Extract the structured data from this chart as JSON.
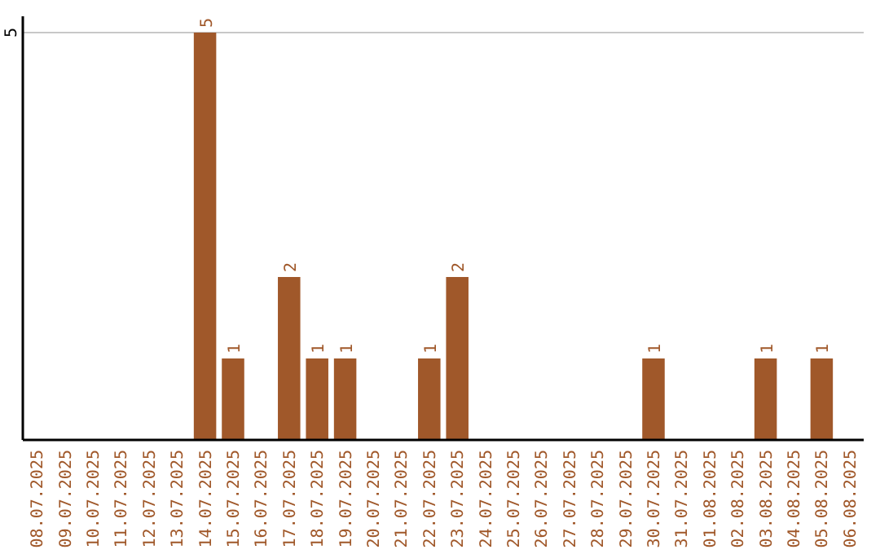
{
  "chart_data": {
    "type": "bar",
    "categories": [
      "08.07.2025",
      "09.07.2025",
      "10.07.2025",
      "11.07.2025",
      "12.07.2025",
      "13.07.2025",
      "14.07.2025",
      "15.07.2025",
      "16.07.2025",
      "17.07.2025",
      "18.07.2025",
      "19.07.2025",
      "20.07.2025",
      "21.07.2025",
      "22.07.2025",
      "23.07.2025",
      "24.07.2025",
      "25.07.2025",
      "26.07.2025",
      "27.07.2025",
      "28.07.2025",
      "29.07.2025",
      "30.07.2025",
      "31.07.2025",
      "01.08.2025",
      "02.08.2025",
      "03.08.2025",
      "04.08.2025",
      "05.08.2025",
      "06.08.2025"
    ],
    "values": [
      0,
      0,
      0,
      0,
      0,
      0,
      5,
      1,
      0,
      2,
      1,
      1,
      0,
      0,
      1,
      2,
      0,
      0,
      0,
      0,
      0,
      0,
      1,
      0,
      0,
      0,
      1,
      0,
      1,
      0
    ],
    "value_labels": [
      null,
      null,
      null,
      null,
      null,
      null,
      "5",
      "1",
      null,
      "2",
      "1",
      "1",
      null,
      null,
      "1",
      "2",
      null,
      null,
      null,
      null,
      null,
      null,
      "1",
      null,
      null,
      null,
      "1",
      null,
      "1",
      null
    ],
    "color": "#a0582a",
    "ylim": [
      0,
      5.2
    ],
    "yticks": [
      5
    ],
    "grid": "y"
  }
}
